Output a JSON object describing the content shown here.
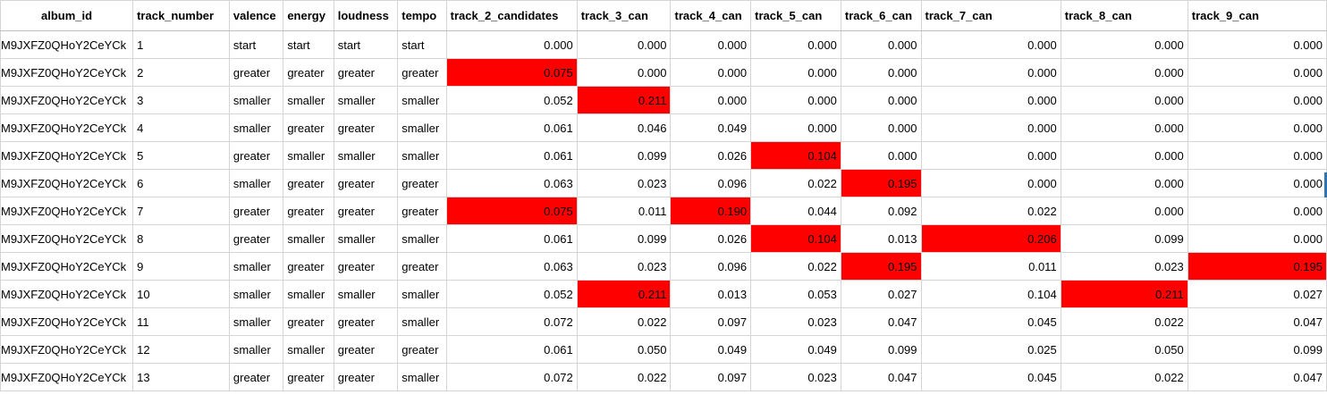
{
  "colors": {
    "highlight": "#ff0000",
    "grid": "#d4d4d4",
    "selection_marker": "#2e75b6"
  },
  "headers": [
    "album_id",
    "track_number",
    "valence",
    "energy",
    "loudness",
    "tempo",
    "track_2_candidates",
    "track_3_can",
    "track_4_can",
    "track_5_can",
    "track_6_can",
    "track_7_can",
    "track_8_can",
    "track_9_can"
  ],
  "rows": [
    {
      "cells": [
        "M9JXFZ0QHoY2CeYCk",
        "1",
        "start",
        "start",
        "start",
        "start",
        "0.000",
        "0.000",
        "0.000",
        "0.000",
        "0.000",
        "0.000",
        "0.000",
        "0.000"
      ],
      "hl": []
    },
    {
      "cells": [
        "M9JXFZ0QHoY2CeYCk",
        "2",
        "greater",
        "greater",
        "greater",
        "greater",
        "0.075",
        "0.000",
        "0.000",
        "0.000",
        "0.000",
        "0.000",
        "0.000",
        "0.000"
      ],
      "hl": [
        6
      ]
    },
    {
      "cells": [
        "M9JXFZ0QHoY2CeYCk",
        "3",
        "smaller",
        "smaller",
        "smaller",
        "smaller",
        "0.052",
        "0.211",
        "0.000",
        "0.000",
        "0.000",
        "0.000",
        "0.000",
        "0.000"
      ],
      "hl": [
        7
      ]
    },
    {
      "cells": [
        "M9JXFZ0QHoY2CeYCk",
        "4",
        "smaller",
        "greater",
        "greater",
        "smaller",
        "0.061",
        "0.046",
        "0.049",
        "0.000",
        "0.000",
        "0.000",
        "0.000",
        "0.000"
      ],
      "hl": []
    },
    {
      "cells": [
        "M9JXFZ0QHoY2CeYCk",
        "5",
        "greater",
        "smaller",
        "smaller",
        "smaller",
        "0.061",
        "0.099",
        "0.026",
        "0.104",
        "0.000",
        "0.000",
        "0.000",
        "0.000"
      ],
      "hl": [
        9
      ]
    },
    {
      "cells": [
        "M9JXFZ0QHoY2CeYCk",
        "6",
        "smaller",
        "greater",
        "greater",
        "greater",
        "0.063",
        "0.023",
        "0.096",
        "0.022",
        "0.195",
        "0.000",
        "0.000",
        "0.000"
      ],
      "hl": [
        10
      ]
    },
    {
      "cells": [
        "M9JXFZ0QHoY2CeYCk",
        "7",
        "greater",
        "greater",
        "greater",
        "greater",
        "0.075",
        "0.011",
        "0.190",
        "0.044",
        "0.092",
        "0.022",
        "0.000",
        "0.000"
      ],
      "hl": [
        6,
        8
      ]
    },
    {
      "cells": [
        "M9JXFZ0QHoY2CeYCk",
        "8",
        "greater",
        "smaller",
        "smaller",
        "smaller",
        "0.061",
        "0.099",
        "0.026",
        "0.104",
        "0.013",
        "0.206",
        "0.099",
        "0.000"
      ],
      "hl": [
        9,
        11
      ]
    },
    {
      "cells": [
        "M9JXFZ0QHoY2CeYCk",
        "9",
        "smaller",
        "greater",
        "greater",
        "greater",
        "0.063",
        "0.023",
        "0.096",
        "0.022",
        "0.195",
        "0.011",
        "0.023",
        "0.195"
      ],
      "hl": [
        10,
        13
      ]
    },
    {
      "cells": [
        "M9JXFZ0QHoY2CeYCk",
        "10",
        "smaller",
        "smaller",
        "smaller",
        "smaller",
        "0.052",
        "0.211",
        "0.013",
        "0.053",
        "0.027",
        "0.104",
        "0.211",
        "0.027"
      ],
      "hl": [
        7,
        12
      ]
    },
    {
      "cells": [
        "M9JXFZ0QHoY2CeYCk",
        "11",
        "smaller",
        "greater",
        "greater",
        "smaller",
        "0.072",
        "0.022",
        "0.097",
        "0.023",
        "0.047",
        "0.045",
        "0.022",
        "0.047"
      ],
      "hl": []
    },
    {
      "cells": [
        "M9JXFZ0QHoY2CeYCk",
        "12",
        "smaller",
        "smaller",
        "greater",
        "greater",
        "0.061",
        "0.050",
        "0.049",
        "0.049",
        "0.099",
        "0.025",
        "0.050",
        "0.099"
      ],
      "hl": []
    },
    {
      "cells": [
        "M9JXFZ0QHoY2CeYCk",
        "13",
        "greater",
        "greater",
        "greater",
        "smaller",
        "0.072",
        "0.022",
        "0.097",
        "0.023",
        "0.047",
        "0.045",
        "0.022",
        "0.047"
      ],
      "hl": []
    }
  ]
}
